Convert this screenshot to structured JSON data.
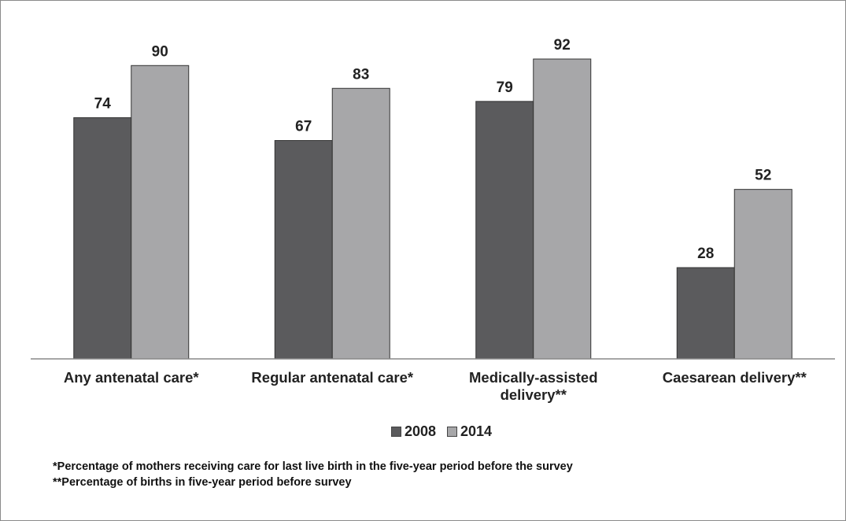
{
  "chart_data": {
    "type": "bar",
    "categories": [
      "Any antenatal care*",
      "Regular antenatal care*",
      "Medically-assisted delivery**",
      "Caesarean delivery**"
    ],
    "series": [
      {
        "name": "2008",
        "color": "#5b5b5d",
        "values": [
          74,
          67,
          79,
          28
        ]
      },
      {
        "name": "2014",
        "color": "#a7a7a9",
        "values": [
          90,
          83,
          92,
          52
        ]
      }
    ],
    "footnotes": [
      "*Percentage of mothers receiving care for last live birth in the five-year period before the survey",
      "**Percentage of births in five-year period before survey"
    ]
  }
}
